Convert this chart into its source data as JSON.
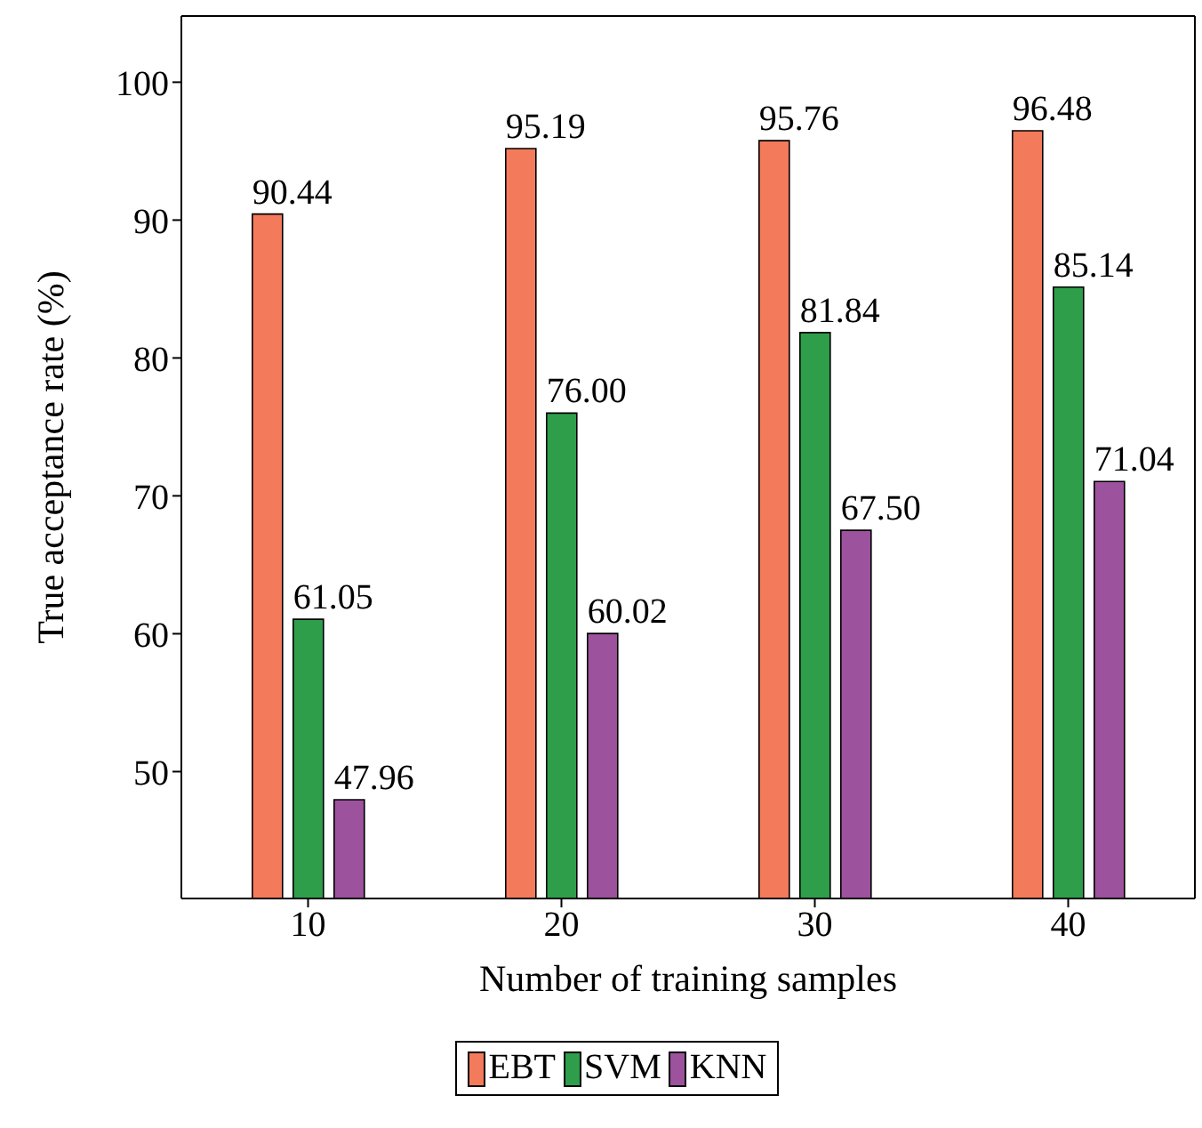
{
  "chart_data": {
    "type": "bar",
    "xlabel": "Number of training samples",
    "ylabel": "True acceptance rate (%)",
    "categories": [
      "10",
      "20",
      "30",
      "40"
    ],
    "series": [
      {
        "name": "EBT",
        "color": "#f47a5c",
        "values": [
          90.44,
          95.19,
          95.76,
          96.48
        ]
      },
      {
        "name": "SVM",
        "color": "#2e9e4a",
        "values": [
          61.05,
          76.0,
          81.84,
          85.14
        ]
      },
      {
        "name": "KNN",
        "color": "#9c529c",
        "values": [
          47.96,
          60.02,
          67.5,
          71.04
        ]
      }
    ],
    "value_labels": [
      [
        "90.44",
        "95.19",
        "95.76",
        "96.48"
      ],
      [
        "61.05",
        "76.00",
        "81.84",
        "85.14"
      ],
      [
        "47.96",
        "60.02",
        "67.50",
        "71.04"
      ]
    ],
    "ylim": [
      40.8,
      104.8
    ],
    "yticks": [
      50,
      60,
      70,
      80,
      90,
      100
    ],
    "legend": "bottom"
  }
}
